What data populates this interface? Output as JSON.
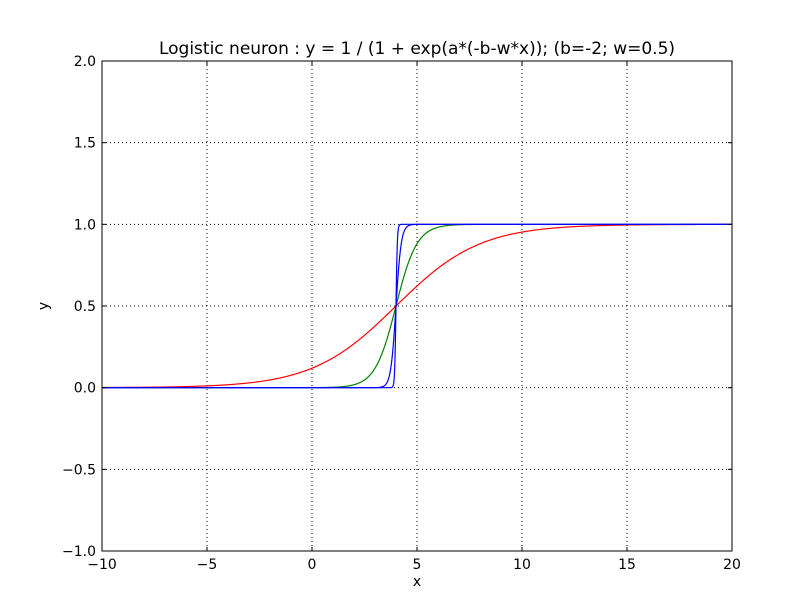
{
  "chart_data": {
    "type": "line",
    "title": "Logistic neuron : y = 1 / (1 + exp(a*(-b-w*x)); (b=-2; w=0.5)",
    "xlabel": "x",
    "ylabel": "y",
    "xlim": [
      -10,
      20
    ],
    "ylim": [
      -1.0,
      2.0
    ],
    "xticks": [
      -10,
      -5,
      0,
      5,
      10,
      15,
      20
    ],
    "xtick_labels": [
      "−10",
      "−5",
      "0",
      "5",
      "10",
      "15",
      "20"
    ],
    "yticks": [
      -1.0,
      -0.5,
      0.0,
      0.5,
      1.0,
      1.5,
      2.0
    ],
    "ytick_labels": [
      "−1.0",
      "−0.5",
      "0.0",
      "0.5",
      "1.0",
      "1.5",
      "2.0"
    ],
    "grid": true,
    "model": {
      "b": -2,
      "w": 0.5
    },
    "series": [
      {
        "a": 1,
        "color": "#ff0000"
      },
      {
        "a": 4,
        "color": "#008000"
      },
      {
        "a": 16,
        "color": "#0000ff"
      },
      {
        "a": 64,
        "color": "#0000ff"
      }
    ]
  }
}
